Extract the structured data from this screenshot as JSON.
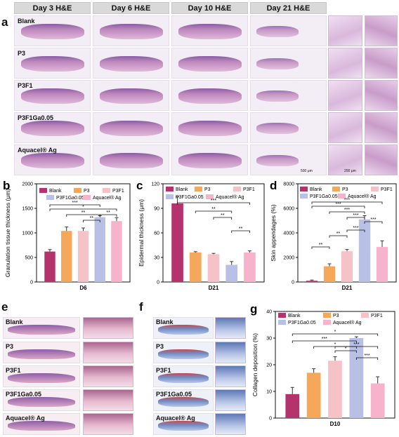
{
  "panels": {
    "a": {
      "letter": "a",
      "headers": [
        "Day 3 H&E",
        "Day 6 H&E",
        "Day 10 H&E",
        "Day 21 H&E"
      ],
      "rows": [
        "Blank",
        "P3",
        "P3F1",
        "P3F1Ga0.05",
        "Aquacel® Ag"
      ],
      "scale1": "500 μm",
      "scale2": "200 μm"
    },
    "e": {
      "letter": "e",
      "rows": [
        "Blank",
        "P3",
        "P3F1",
        "P3F1Ga0.05",
        "Aquacel® Ag"
      ]
    },
    "f": {
      "letter": "f",
      "rows": [
        "Blank",
        "P3",
        "P3F1",
        "P3F1Ga0.05",
        "Aquacel® Ag"
      ]
    }
  },
  "colors": {
    "Blank": "#b5336d",
    "P3": "#f5a85a",
    "P3F1": "#f5c2c8",
    "P3F1Ga0.05": "#b9c0e6",
    "Aquacel® Ag": "#f8b3cc",
    "he_stain": "#b87bb5",
    "masson_stain": "#6f8bc4"
  },
  "chart_data": [
    {
      "letter": "b",
      "type": "bar",
      "ylabel": "Granulation tissue thickness (μm)",
      "xlabel": "D6",
      "ylim": [
        0,
        2000
      ],
      "yticks": [
        "0",
        "500",
        "1000",
        "1500",
        "2000"
      ],
      "yticks_values": [
        0,
        500,
        1000,
        1500,
        2000
      ],
      "categories": [
        "Blank",
        "P3",
        "P3F1",
        "P3F1Ga0.05",
        "Aquacel® Ag"
      ],
      "values": [
        620,
        1040,
        1040,
        1320,
        1240
      ],
      "errors": [
        40,
        80,
        60,
        30,
        70
      ],
      "significance": [
        "***",
        "*",
        "**",
        "**",
        "**"
      ]
    },
    {
      "letter": "c",
      "type": "bar",
      "ylabel": "Epidermal thickness (μm)",
      "xlabel": "D21",
      "ylim": [
        0,
        120
      ],
      "yticks": [
        "0",
        "30",
        "60",
        "90",
        "120"
      ],
      "yticks_values": [
        0,
        30,
        60,
        90,
        120
      ],
      "categories": [
        "Blank",
        "P3",
        "P3F1",
        "P3F1Ga0.05",
        "Aquacel® Ag"
      ],
      "values": [
        96,
        36,
        34,
        21,
        36
      ],
      "errors": [
        8,
        1,
        1,
        4,
        2
      ],
      "significance": [
        "***",
        "**",
        "**",
        "**"
      ]
    },
    {
      "letter": "d",
      "type": "bar",
      "ylabel": "Skin appendages (%)",
      "xlabel": "D21",
      "ylim": [
        0,
        8000
      ],
      "yticks": [
        "0",
        "2000",
        "4000",
        "6000",
        "8000"
      ],
      "yticks_values": [
        0,
        2000,
        4000,
        6000,
        8000
      ],
      "categories": [
        "Blank",
        "P3",
        "P3F1",
        "P3F1Ga0.05",
        "Aquacel® Ag"
      ],
      "values": [
        100,
        1280,
        2500,
        5100,
        2850
      ],
      "errors": [
        60,
        200,
        150,
        300,
        500
      ],
      "significance": [
        "***",
        "***",
        "***",
        "***",
        "**",
        "**",
        "***",
        "***"
      ]
    },
    {
      "letter": "g",
      "type": "bar",
      "ylabel": "Collagen deposition (%)",
      "xlabel": "D10",
      "ylim": [
        0,
        40
      ],
      "yticks": [
        "0",
        "10",
        "20",
        "30",
        "40"
      ],
      "yticks_values": [
        0,
        10,
        20,
        30,
        40
      ],
      "categories": [
        "Blank",
        "P3",
        "P3F1",
        "P3F1Ga0.05",
        "Aquacel® Ag"
      ],
      "values": [
        9,
        17,
        21.5,
        30,
        13
      ],
      "errors": [
        2.5,
        1.5,
        1.5,
        0.5,
        2.5
      ],
      "significance": [
        "*",
        "***",
        "*",
        "*",
        "***",
        "***"
      ]
    }
  ]
}
